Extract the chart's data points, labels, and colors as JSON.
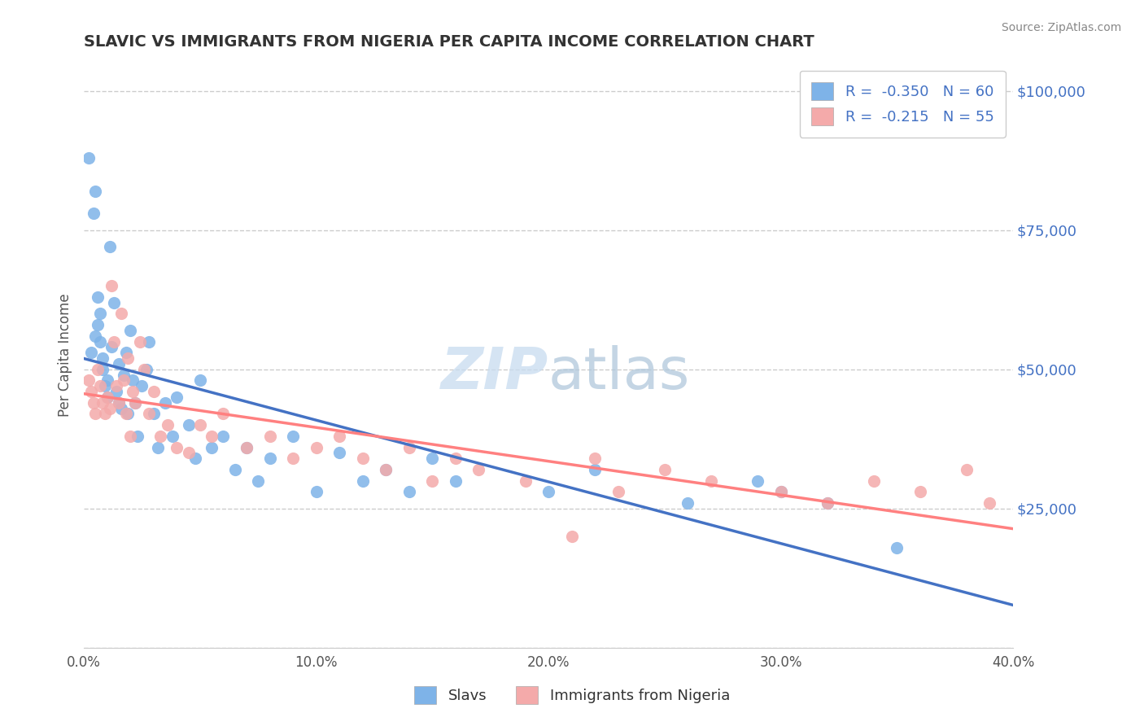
{
  "title": "SLAVIC VS IMMIGRANTS FROM NIGERIA PER CAPITA INCOME CORRELATION CHART",
  "source": "Source: ZipAtlas.com",
  "ylabel": "Per Capita Income",
  "series_blue_label": "Slavs",
  "series_pink_label": "Immigrants from Nigeria",
  "xlim": [
    0.0,
    0.4
  ],
  "ylim": [
    0,
    105000
  ],
  "yticks": [
    0,
    25000,
    50000,
    75000,
    100000
  ],
  "ytick_labels": [
    "",
    "$25,000",
    "$50,000",
    "$75,000",
    "$100,000"
  ],
  "xtick_vals": [
    0.0,
    0.1,
    0.2,
    0.3,
    0.4
  ],
  "xtick_labels": [
    "0.0%",
    "10.0%",
    "20.0%",
    "30.0%",
    "40.0%"
  ],
  "blue_color": "#7EB3E8",
  "pink_color": "#F4AAAA",
  "line_blue": "#4472C4",
  "line_pink": "#FF8080",
  "title_color": "#333333",
  "axis_label_color": "#555555",
  "ytick_color": "#4472C4",
  "xtick_color": "#555555",
  "background_color": "#FFFFFF",
  "grid_color": "#CCCCCC",
  "blue_scatter": {
    "x": [
      0.002,
      0.003,
      0.004,
      0.005,
      0.005,
      0.006,
      0.006,
      0.007,
      0.007,
      0.008,
      0.008,
      0.009,
      0.01,
      0.01,
      0.011,
      0.012,
      0.013,
      0.014,
      0.015,
      0.015,
      0.016,
      0.017,
      0.018,
      0.019,
      0.02,
      0.021,
      0.022,
      0.023,
      0.025,
      0.027,
      0.028,
      0.03,
      0.032,
      0.035,
      0.038,
      0.04,
      0.045,
      0.048,
      0.05,
      0.055,
      0.06,
      0.065,
      0.07,
      0.075,
      0.08,
      0.09,
      0.1,
      0.11,
      0.12,
      0.13,
      0.14,
      0.15,
      0.16,
      0.2,
      0.22,
      0.26,
      0.29,
      0.3,
      0.32,
      0.35
    ],
    "y": [
      88000,
      53000,
      78000,
      82000,
      56000,
      58000,
      63000,
      55000,
      60000,
      50000,
      52000,
      47000,
      48000,
      45000,
      72000,
      54000,
      62000,
      46000,
      44000,
      51000,
      43000,
      49000,
      53000,
      42000,
      57000,
      48000,
      44000,
      38000,
      47000,
      50000,
      55000,
      42000,
      36000,
      44000,
      38000,
      45000,
      40000,
      34000,
      48000,
      36000,
      38000,
      32000,
      36000,
      30000,
      34000,
      38000,
      28000,
      35000,
      30000,
      32000,
      28000,
      34000,
      30000,
      28000,
      32000,
      26000,
      30000,
      28000,
      26000,
      18000
    ]
  },
  "pink_scatter": {
    "x": [
      0.002,
      0.003,
      0.004,
      0.005,
      0.006,
      0.007,
      0.008,
      0.009,
      0.01,
      0.011,
      0.012,
      0.013,
      0.014,
      0.015,
      0.016,
      0.017,
      0.018,
      0.019,
      0.02,
      0.021,
      0.022,
      0.024,
      0.026,
      0.028,
      0.03,
      0.033,
      0.036,
      0.04,
      0.045,
      0.05,
      0.055,
      0.06,
      0.07,
      0.08,
      0.09,
      0.1,
      0.11,
      0.12,
      0.13,
      0.14,
      0.15,
      0.16,
      0.17,
      0.19,
      0.21,
      0.22,
      0.23,
      0.25,
      0.27,
      0.3,
      0.32,
      0.34,
      0.36,
      0.38,
      0.39
    ],
    "y": [
      48000,
      46000,
      44000,
      42000,
      50000,
      47000,
      44000,
      42000,
      45000,
      43000,
      65000,
      55000,
      47000,
      44000,
      60000,
      48000,
      42000,
      52000,
      38000,
      46000,
      44000,
      55000,
      50000,
      42000,
      46000,
      38000,
      40000,
      36000,
      35000,
      40000,
      38000,
      42000,
      36000,
      38000,
      34000,
      36000,
      38000,
      34000,
      32000,
      36000,
      30000,
      34000,
      32000,
      30000,
      20000,
      34000,
      28000,
      32000,
      30000,
      28000,
      26000,
      30000,
      28000,
      32000,
      26000
    ]
  }
}
